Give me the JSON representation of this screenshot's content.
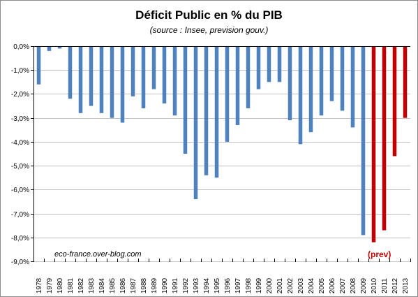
{
  "chart_data": {
    "type": "bar",
    "title": "Déficit Public  en % du PIB",
    "subtitle": "(source : Insee, prevision gouv.)",
    "categories": [
      "1978",
      "1979",
      "1980",
      "1981",
      "1982",
      "1983",
      "1984",
      "1985",
      "1986",
      "1987",
      "1988",
      "1989",
      "1990",
      "1991",
      "1992",
      "1993",
      "1994",
      "1995",
      "1996",
      "1997",
      "1998",
      "1999",
      "2000",
      "2001",
      "2002",
      "2003",
      "2004",
      "2005",
      "2006",
      "2007",
      "2008",
      "2009",
      "2010",
      "2011",
      "2012",
      "2013"
    ],
    "values": [
      -1.6,
      -0.2,
      -0.1,
      -2.2,
      -2.8,
      -2.5,
      -2.8,
      -3.0,
      -3.2,
      -2.1,
      -2.6,
      -1.8,
      -2.4,
      -2.9,
      -4.5,
      -6.4,
      -5.4,
      -5.5,
      -4.0,
      -3.3,
      -2.6,
      -1.8,
      -1.5,
      -1.5,
      -3.1,
      -4.1,
      -3.6,
      -2.9,
      -2.3,
      -2.7,
      -3.4,
      -7.9,
      -8.2,
      -7.7,
      -4.6,
      -3.0
    ],
    "ylim": [
      -9,
      0
    ],
    "yticks": [
      0,
      -1,
      -2,
      -3,
      -4,
      -5,
      -6,
      -7,
      -8,
      -9
    ],
    "ytick_labels": [
      "0,0%",
      "-1,0%",
      "-2,0%",
      "-3,0%",
      "-4,0%",
      "-5,0%",
      "-6,0%",
      "-7,0%",
      "-8,0%",
      "-9,0%"
    ],
    "xlabel": "",
    "ylabel": "",
    "grid": "horizontal",
    "legend": "none",
    "colors": {
      "actual": "#4f81bd",
      "forecast": "#c00000",
      "grid": "#c0c0c0"
    },
    "forecast_from": "2010",
    "annotations": {
      "watermark": "eco-france.over-blog.com",
      "forecast_label": "(prev)"
    }
  }
}
